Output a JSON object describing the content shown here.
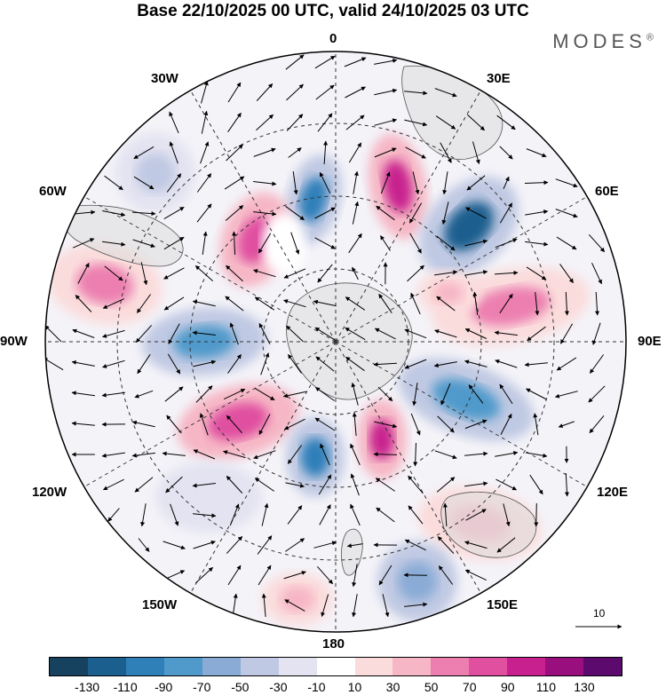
{
  "title": "Base 22/10/2025 00 UTC, valid 24/10/2025 03 UTC",
  "brand": "MODES",
  "brand_mark": "®",
  "longitude_labels": {
    "top": "0",
    "bottom": "180",
    "left": "90W",
    "right": "90E",
    "nw1": "30W",
    "nw2": "60W",
    "ne1": "30E",
    "ne2": "60E",
    "sw1": "120W",
    "sw2": "150W",
    "se1": "120E",
    "se2": "150E"
  },
  "vector_scale_label": "10",
  "colorbar": {
    "colors": [
      "#17425f",
      "#1b5f8f",
      "#2f7fb9",
      "#4f9acb",
      "#89abd6",
      "#c0c9e3",
      "#e3e3f1",
      "#ffffff",
      "#fbdcdc",
      "#f6b6c5",
      "#ec7fb0",
      "#e04fa0",
      "#c8208e",
      "#9a0f7e",
      "#5c0a6e"
    ],
    "ticks": [
      "-130",
      "-110",
      "-90",
      "-70",
      "-50",
      "-30",
      "-10",
      "10",
      "30",
      "50",
      "70",
      "90",
      "110",
      "130"
    ]
  },
  "colors": {
    "land": "#dcdcdc",
    "coast": "#555555",
    "grid": "#333333"
  }
}
